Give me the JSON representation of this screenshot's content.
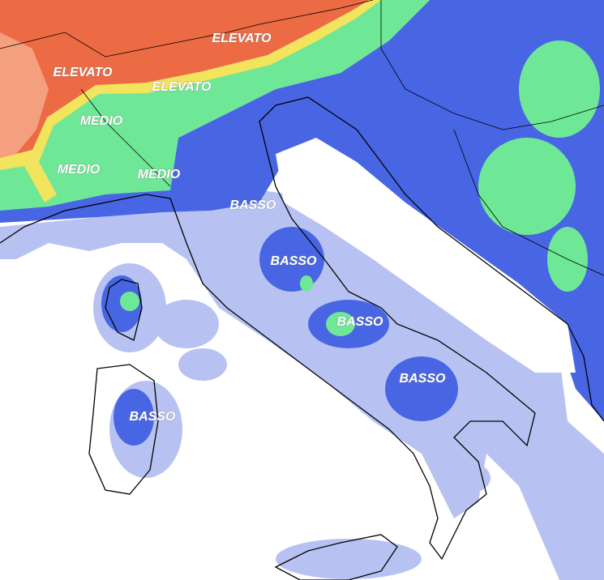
{
  "labels": [
    "ELEVATO",
    "ELEVATO",
    "ELEVATO",
    "MEDIO",
    "MEDIO",
    "MEDIO",
    "BASSO",
    "BASSO",
    "BASSO",
    "BASSO",
    "BASSO"
  ]
}
